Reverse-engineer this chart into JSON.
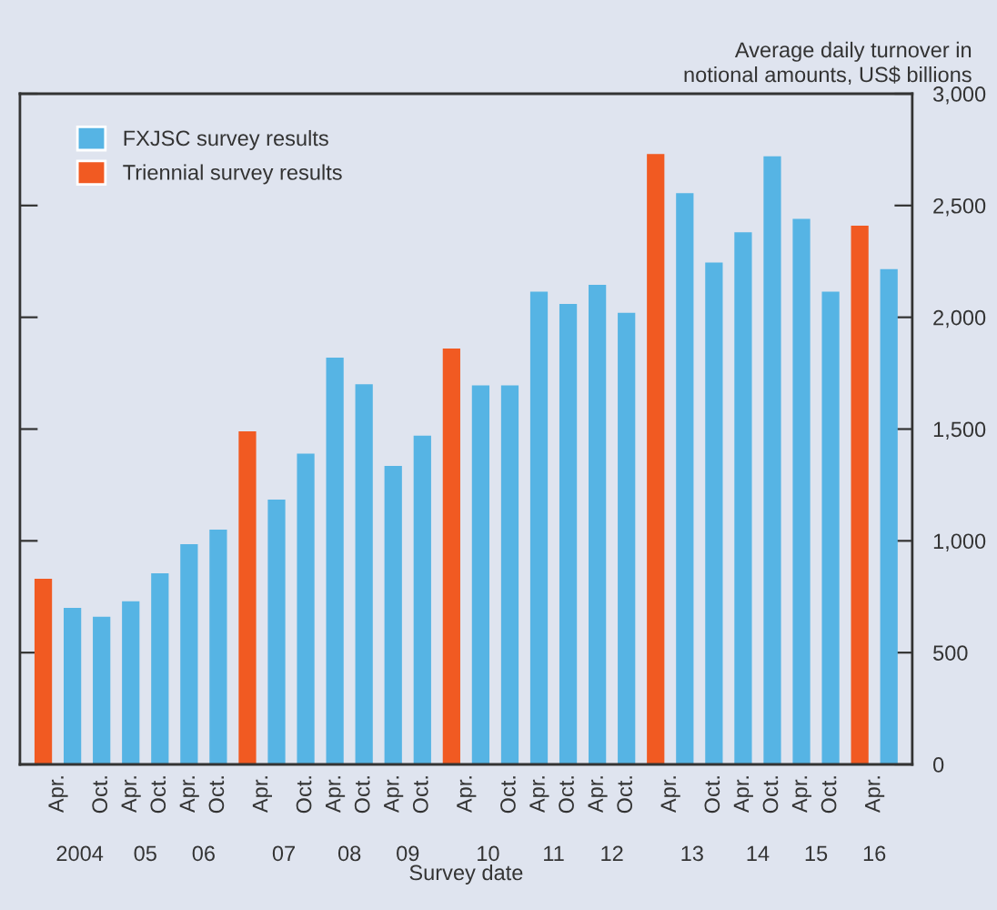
{
  "chart_data": {
    "type": "bar",
    "ylabel": "Average daily turnover in\nnotional amounts, US$ billions",
    "xlabel": "Survey date",
    "categories": [
      "Apr.",
      "Oct.",
      "Apr.",
      "Oct.",
      "Apr.",
      "Oct.",
      "Apr.",
      "Oct.",
      "Apr.",
      "Oct.",
      "Apr.",
      "Oct.",
      "Apr.",
      "Oct.",
      "Apr.",
      "Oct.",
      "Apr.",
      "Oct.",
      "Apr.",
      "Oct.",
      "Apr.",
      "Oct.",
      "Apr.",
      "Oct.",
      "Apr."
    ],
    "series": [
      {
        "name": "Triennial survey results",
        "color": "#f15a22",
        "values": [
          830,
          null,
          null,
          null,
          null,
          null,
          1490,
          null,
          null,
          null,
          null,
          null,
          1860,
          null,
          null,
          null,
          null,
          null,
          2730,
          null,
          null,
          null,
          null,
          null,
          2410
        ]
      },
      {
        "name": "FXJSC survey results",
        "color": "#56b4e4",
        "values": [
          700,
          660,
          730,
          855,
          985,
          1050,
          1185,
          1390,
          1820,
          1700,
          1335,
          1470,
          1695,
          1695,
          2115,
          2060,
          2145,
          2020,
          2555,
          2245,
          2380,
          2720,
          2440,
          2115,
          2215
        ]
      }
    ],
    "ylim": [
      0,
      3000
    ],
    "yticks": [
      0,
      500,
      {
        "value": 1000,
        "label": "1,000"
      },
      {
        "value": 1500,
        "label": "1,500"
      },
      {
        "value": 2000,
        "label": "2,000"
      },
      {
        "value": 2500,
        "label": "2,500"
      },
      {
        "value": 3000,
        "label": "3,000"
      }
    ],
    "annotations": [
      "2004",
      "05",
      "06",
      "07",
      "08",
      "09",
      "10",
      "11",
      "12",
      "13",
      "14",
      "15",
      "16"
    ],
    "legend": "top left",
    "grid": false
  }
}
